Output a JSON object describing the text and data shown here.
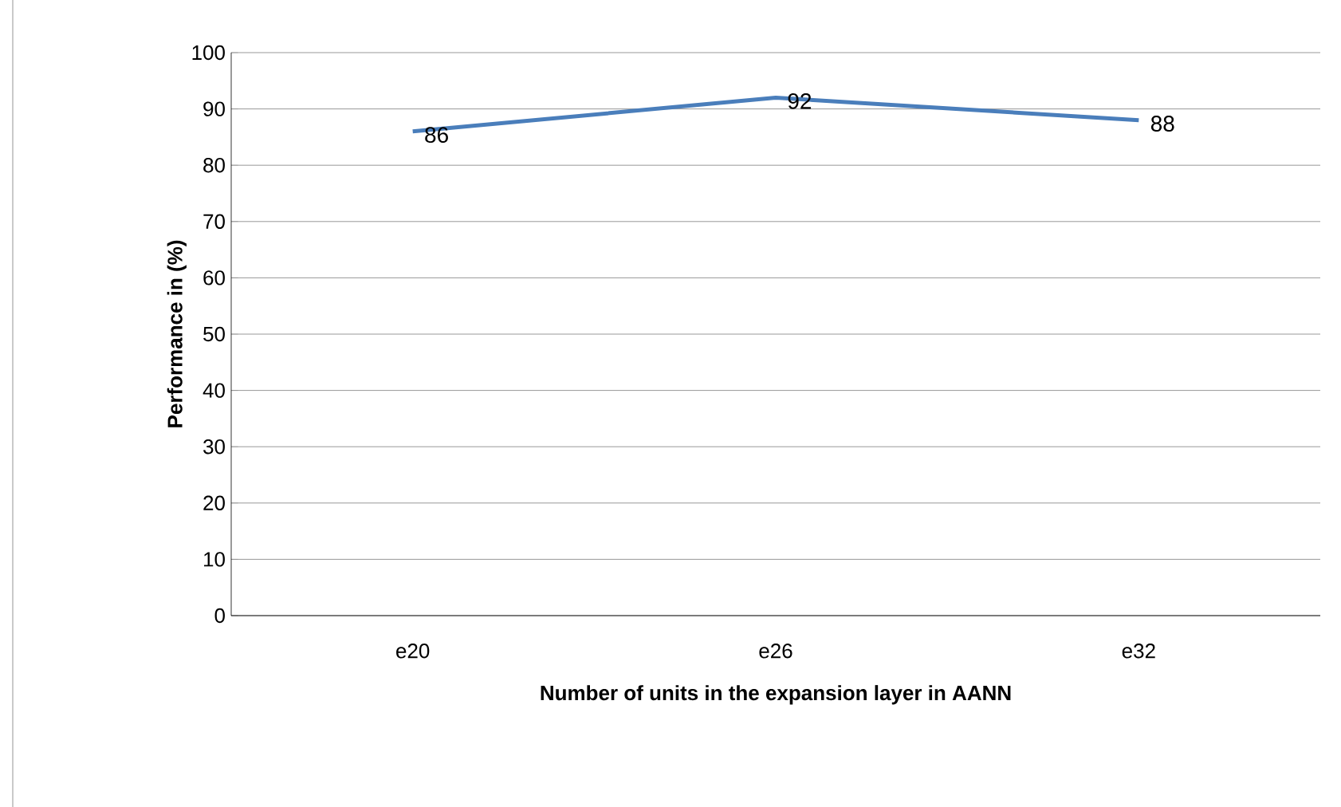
{
  "chart_data": {
    "type": "line",
    "xlabel": "Number of units in the expansion layer in AANN",
    "ylabel": "Performance in (%)",
    "categories": [
      "e20",
      "e26",
      "e32"
    ],
    "values": [
      86,
      92,
      88
    ],
    "color": "#4a7ebb",
    "ylim": [
      0,
      100
    ],
    "yticks": [
      0,
      10,
      20,
      30,
      40,
      50,
      60,
      70,
      80,
      90,
      100
    ],
    "grid": "y",
    "data_labels": true,
    "marker": "none",
    "line_style": "solid"
  }
}
